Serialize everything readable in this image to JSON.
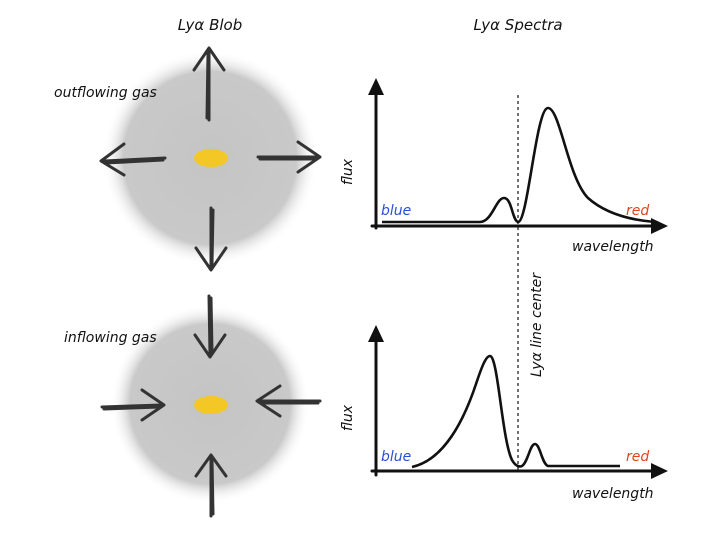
{
  "titles": {
    "blob": "Lyα Blob",
    "spectra": "Lyα Spectra"
  },
  "top_panel": {
    "gas_label": "outflowing gas",
    "axis_y": "flux",
    "axis_x": "wavelength",
    "blue_label": "blue",
    "red_label": "red"
  },
  "bottom_panel": {
    "gas_label": "inflowing gas",
    "axis_y": "flux",
    "axis_x": "wavelength",
    "blue_label": "blue",
    "red_label": "red"
  },
  "line_center_label": "Lyα line center",
  "colors": {
    "blob_gray": "#c7c7c7",
    "core_yellow": "#f3c726",
    "blue_text": "#2a4fd6",
    "red_text": "#e0461e",
    "ink": "#222222"
  }
}
